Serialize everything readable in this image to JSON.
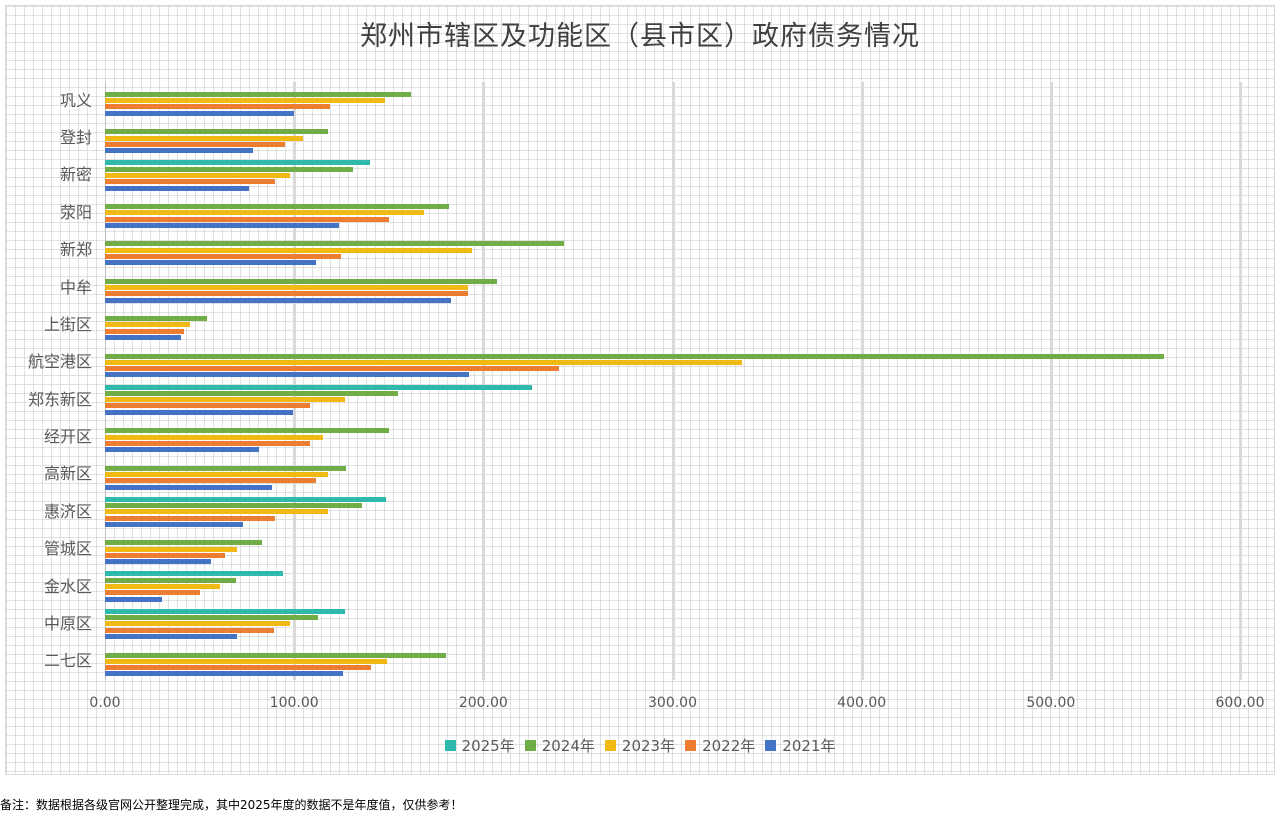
{
  "chart_data": {
    "type": "bar",
    "orientation": "horizontal",
    "title": "郑州市辖区及功能区（县市区）政府债务情况",
    "xlabel": "",
    "ylabel": "",
    "xlim": [
      0,
      600
    ],
    "x_ticks": [
      "0.00",
      "100.00",
      "200.00",
      "300.00",
      "400.00",
      "500.00",
      "600.00"
    ],
    "grid": true,
    "legend_position": "bottom",
    "categories": [
      "巩义",
      "登封",
      "新密",
      "荥阳",
      "新郑",
      "中牟",
      "上街区",
      "航空港区",
      "郑东新区",
      "经开区",
      "高新区",
      "惠济区",
      "管城区",
      "金水区",
      "中原区",
      "二七区"
    ],
    "series": [
      {
        "name": "2025年",
        "color": "#2fb8ac",
        "values": [
          null,
          null,
          140,
          null,
          null,
          null,
          null,
          null,
          225.5,
          null,
          null,
          148.4,
          null,
          94,
          127,
          null
        ]
      },
      {
        "name": "2024年",
        "color": "#70ad47",
        "values": [
          162,
          118,
          131,
          182,
          242.5,
          207,
          54,
          560,
          155,
          150,
          127.4,
          135.7,
          83,
          69,
          112.4,
          180
        ]
      },
      {
        "name": "2023年",
        "color": "#f0b913",
        "values": [
          148,
          104.5,
          98,
          168.5,
          194,
          192,
          45,
          337,
          127,
          115,
          118,
          118,
          70,
          61,
          98,
          149
        ]
      },
      {
        "name": "2022年",
        "color": "#ed7d31",
        "values": [
          119,
          95,
          90,
          150,
          124.5,
          192,
          42,
          240,
          108.4,
          108.4,
          111.5,
          90,
          63.4,
          50.2,
          89.3,
          140.6
        ]
      },
      {
        "name": "2021年",
        "color": "#4472c4",
        "values": [
          100,
          78,
          76,
          123.5,
          111.5,
          182.7,
          40,
          192.4,
          99.2,
          81.6,
          88.3,
          73,
          56,
          30,
          70,
          125.8
        ]
      }
    ]
  },
  "footnote": "备注：数据根据各级官网公开整理完成，其中2025年度的数据不是年度值，仅供参考！"
}
